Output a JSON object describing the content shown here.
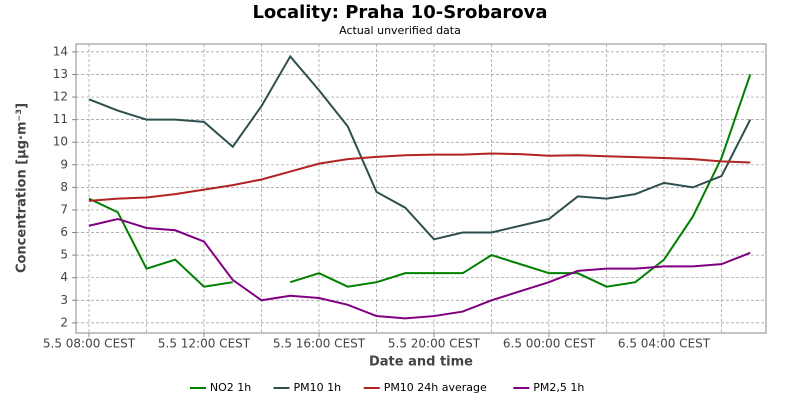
{
  "chart_data": {
    "type": "line",
    "title": "Locality: Praha 10-Srobarova",
    "subtitle": "Actual unverified data",
    "x_label": "Date and time",
    "y_label": "Concentration [µg·m⁻³]",
    "categories": [
      "5.5 08:00 CEST",
      null,
      null,
      null,
      "5.5 12:00 CEST",
      null,
      null,
      null,
      "5.5 16:00 CEST",
      null,
      null,
      null,
      "5.5 20:00 CEST",
      null,
      null,
      null,
      "6.5 00:00 CEST",
      null,
      null,
      null,
      "6.5 04:00 CEST",
      null,
      null,
      null
    ],
    "series": [
      {
        "name": "NO2 1h",
        "color": "#008000",
        "values": [
          7.5,
          6.9,
          4.4,
          4.8,
          3.6,
          3.8,
          null,
          3.8,
          4.2,
          3.6,
          3.8,
          4.2,
          4.2,
          4.2,
          5.0,
          4.6,
          4.2,
          4.2,
          3.6,
          3.8,
          4.8,
          6.7,
          9.3,
          13.0
        ]
      },
      {
        "name": "PM10 1h",
        "color": "#2f4f4f",
        "values": [
          11.9,
          11.4,
          11.0,
          11.0,
          10.9,
          9.8,
          11.6,
          13.8,
          12.3,
          10.7,
          7.8,
          7.1,
          5.7,
          6.0,
          6.0,
          6.3,
          6.6,
          7.6,
          7.5,
          7.7,
          8.2,
          8.0,
          8.5,
          11.0
        ]
      },
      {
        "name": "PM10 24h average",
        "color": "#b22222",
        "values": [
          7.4,
          7.5,
          7.55,
          7.7,
          7.9,
          8.1,
          8.35,
          8.7,
          9.05,
          9.25,
          9.35,
          9.42,
          9.45,
          9.45,
          9.5,
          9.47,
          9.4,
          9.42,
          9.38,
          9.34,
          9.3,
          9.25,
          9.15,
          9.1
        ]
      },
      {
        "name": "PM2,5 1h",
        "color": "#800080",
        "values": [
          6.3,
          6.6,
          6.2,
          6.1,
          5.6,
          3.9,
          3.0,
          3.2,
          3.1,
          2.8,
          2.3,
          2.2,
          2.3,
          2.5,
          3.0,
          3.4,
          3.8,
          4.3,
          4.4,
          4.4,
          4.5,
          4.5,
          4.6,
          5.1
        ]
      }
    ],
    "ylim": [
      1.55,
      14.35
    ],
    "yticks": [
      2,
      3,
      4,
      5,
      6,
      7,
      8,
      9,
      10,
      11,
      12,
      13,
      14
    ],
    "grid": true,
    "legend": "bottom"
  }
}
